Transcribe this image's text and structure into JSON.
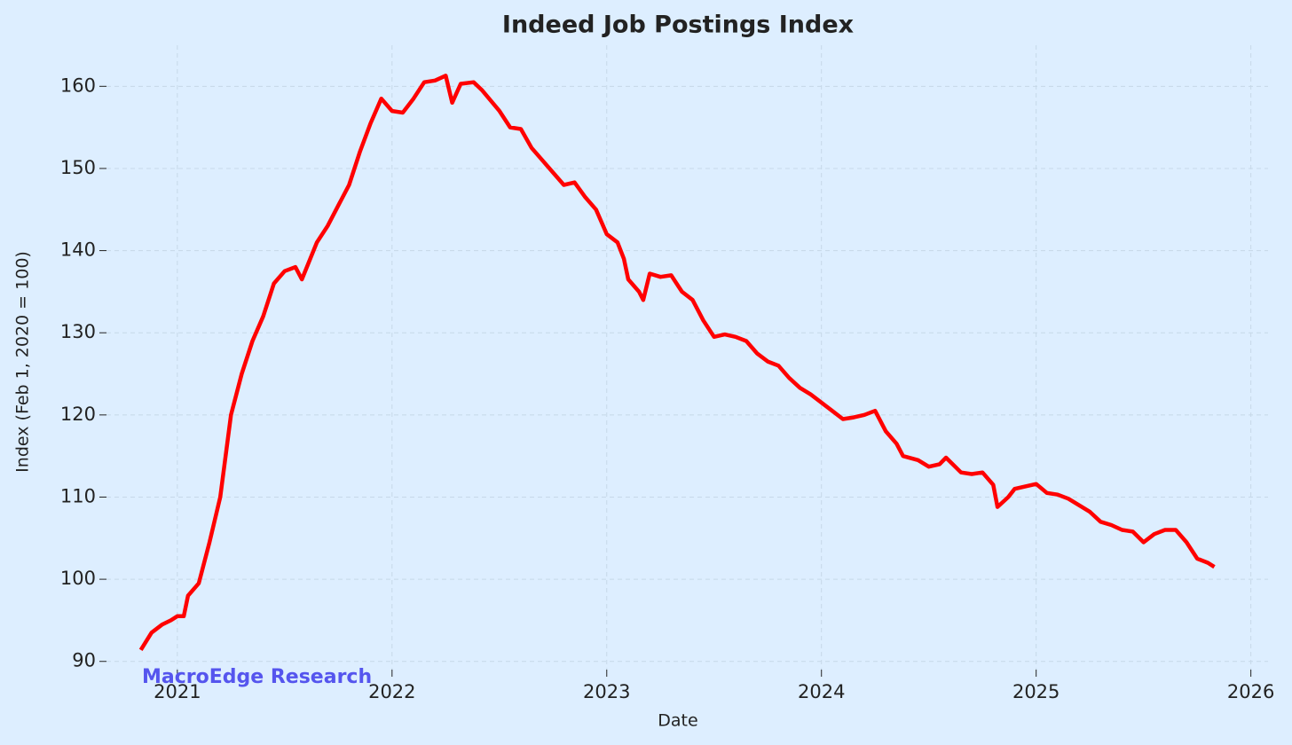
{
  "chart_data": {
    "type": "line",
    "title": "Indeed Job Postings Index",
    "x_label": "Date",
    "y_label": "Index (Feb 1, 2020 = 100)",
    "annotation": "MacroEdge Research",
    "x": [
      2020.83,
      2020.88,
      2020.93,
      2020.97,
      2021.0,
      2021.03,
      2021.05,
      2021.1,
      2021.15,
      2021.2,
      2021.25,
      2021.3,
      2021.35,
      2021.4,
      2021.45,
      2021.5,
      2021.55,
      2021.58,
      2021.65,
      2021.7,
      2021.75,
      2021.8,
      2021.85,
      2021.9,
      2021.95,
      2022.0,
      2022.05,
      2022.1,
      2022.15,
      2022.2,
      2022.25,
      2022.28,
      2022.32,
      2022.38,
      2022.42,
      2022.5,
      2022.55,
      2022.6,
      2022.65,
      2022.7,
      2022.75,
      2022.8,
      2022.85,
      2022.9,
      2022.95,
      2023.0,
      2023.05,
      2023.08,
      2023.1,
      2023.15,
      2023.17,
      2023.2,
      2023.25,
      2023.3,
      2023.35,
      2023.4,
      2023.45,
      2023.5,
      2023.55,
      2023.6,
      2023.65,
      2023.7,
      2023.75,
      2023.8,
      2023.85,
      2023.9,
      2023.95,
      2024.0,
      2024.05,
      2024.1,
      2024.15,
      2024.2,
      2024.25,
      2024.3,
      2024.35,
      2024.38,
      2024.45,
      2024.5,
      2024.55,
      2024.58,
      2024.65,
      2024.7,
      2024.75,
      2024.8,
      2024.82,
      2024.87,
      2024.9,
      2024.95,
      2025.0,
      2025.05,
      2025.1,
      2025.15,
      2025.2,
      2025.25,
      2025.3,
      2025.35,
      2025.4,
      2025.45,
      2025.5,
      2025.55,
      2025.6,
      2025.65,
      2025.7,
      2025.75,
      2025.8,
      2025.83
    ],
    "series": [
      {
        "name": "Indeed Job Postings Index",
        "color": "#ff0000",
        "values": [
          91.4,
          93.5,
          94.5,
          95.0,
          95.5,
          95.5,
          98,
          99.5,
          104.5,
          110,
          120,
          125,
          129,
          132,
          136,
          137.5,
          138,
          136.5,
          141,
          143,
          145.5,
          148,
          152,
          155.5,
          158.5,
          157,
          156.8,
          158.5,
          160.5,
          160.7,
          161.3,
          158,
          160.3,
          160.5,
          159.5,
          157,
          155,
          154.8,
          152.5,
          151,
          149.5,
          148,
          148.3,
          146.5,
          145,
          142,
          141,
          139,
          136.5,
          135,
          134,
          137.2,
          136.8,
          137,
          135,
          134,
          131.5,
          129.5,
          129.8,
          129.5,
          129,
          127.5,
          126.5,
          126,
          124.5,
          123.3,
          122.5,
          121.5,
          120.5,
          119.5,
          119.7,
          120,
          120.5,
          118,
          116.5,
          115,
          114.5,
          113.7,
          114,
          114.8,
          113,
          112.8,
          113,
          111.5,
          108.8,
          110,
          111,
          111.3,
          111.6,
          110.5,
          110.3,
          109.8,
          109,
          108.2,
          107,
          106.6,
          106,
          105.8,
          104.5,
          105.5,
          106,
          106,
          104.5,
          102.5,
          102,
          101.5
        ]
      }
    ],
    "xlim": [
      2020.67,
      2026.08
    ],
    "xticks": [
      2021,
      2022,
      2023,
      2024,
      2025,
      2026
    ],
    "ylim": [
      89,
      165
    ],
    "yticks": [
      90,
      100,
      110,
      120,
      130,
      140,
      150,
      160
    ],
    "grid": true
  }
}
